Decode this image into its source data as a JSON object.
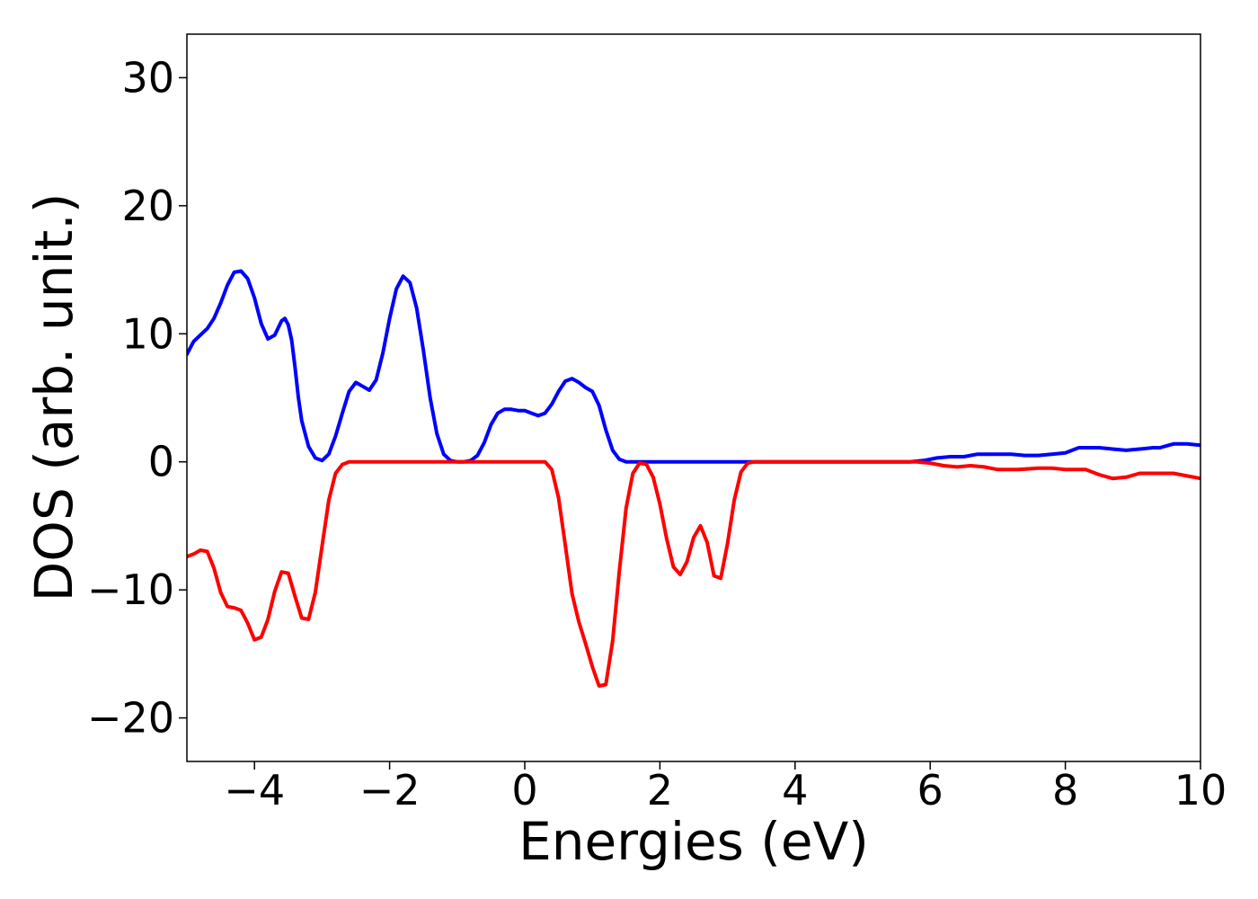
{
  "chart_data": {
    "type": "line",
    "title": "",
    "xlabel": "Energies (eV)",
    "ylabel": "DOS (arb. unit.)",
    "xlim": [
      -5,
      10
    ],
    "ylim": [
      -23.4,
      33.4
    ],
    "xticks": [
      -4,
      -2,
      0,
      2,
      4,
      6,
      8,
      10
    ],
    "xtick_labels": [
      "−4",
      "−2",
      "0",
      "2",
      "4",
      "6",
      "8",
      "10"
    ],
    "yticks": [
      -20,
      -10,
      0,
      10,
      20,
      30
    ],
    "ytick_labels": [
      "−20",
      "−10",
      "0",
      "10",
      "20",
      "30"
    ],
    "grid": false,
    "legend": "none",
    "series": [
      {
        "color": "#0000ff",
        "points": [
          [
            -5.0,
            8.4
          ],
          [
            -4.9,
            9.4
          ],
          [
            -4.8,
            9.9
          ],
          [
            -4.7,
            10.4
          ],
          [
            -4.6,
            11.2
          ],
          [
            -4.5,
            12.4
          ],
          [
            -4.4,
            13.8
          ],
          [
            -4.3,
            14.8
          ],
          [
            -4.2,
            14.9
          ],
          [
            -4.1,
            14.3
          ],
          [
            -4.0,
            12.8
          ],
          [
            -3.9,
            10.8
          ],
          [
            -3.8,
            9.6
          ],
          [
            -3.7,
            9.9
          ],
          [
            -3.6,
            11.0
          ],
          [
            -3.55,
            11.2
          ],
          [
            -3.5,
            10.7
          ],
          [
            -3.45,
            9.5
          ],
          [
            -3.4,
            7.4
          ],
          [
            -3.35,
            5.0
          ],
          [
            -3.3,
            3.2
          ],
          [
            -3.2,
            1.2
          ],
          [
            -3.1,
            0.3
          ],
          [
            -3.0,
            0.1
          ],
          [
            -2.9,
            0.6
          ],
          [
            -2.8,
            2.0
          ],
          [
            -2.7,
            3.8
          ],
          [
            -2.6,
            5.5
          ],
          [
            -2.5,
            6.2
          ],
          [
            -2.4,
            5.9
          ],
          [
            -2.3,
            5.6
          ],
          [
            -2.2,
            6.4
          ],
          [
            -2.1,
            8.5
          ],
          [
            -2.0,
            11.2
          ],
          [
            -1.9,
            13.5
          ],
          [
            -1.8,
            14.5
          ],
          [
            -1.7,
            14.0
          ],
          [
            -1.6,
            12.0
          ],
          [
            -1.5,
            8.7
          ],
          [
            -1.4,
            5.0
          ],
          [
            -1.3,
            2.2
          ],
          [
            -1.2,
            0.6
          ],
          [
            -1.1,
            0.1
          ],
          [
            -1.0,
            0.0
          ],
          [
            -0.9,
            0.0
          ],
          [
            -0.8,
            0.1
          ],
          [
            -0.7,
            0.5
          ],
          [
            -0.6,
            1.5
          ],
          [
            -0.5,
            2.9
          ],
          [
            -0.4,
            3.8
          ],
          [
            -0.3,
            4.1
          ],
          [
            -0.2,
            4.1
          ],
          [
            -0.1,
            4.0
          ],
          [
            0.0,
            4.0
          ],
          [
            0.1,
            3.8
          ],
          [
            0.2,
            3.6
          ],
          [
            0.3,
            3.8
          ],
          [
            0.4,
            4.5
          ],
          [
            0.5,
            5.5
          ],
          [
            0.6,
            6.3
          ],
          [
            0.7,
            6.5
          ],
          [
            0.8,
            6.2
          ],
          [
            0.9,
            5.8
          ],
          [
            1.0,
            5.5
          ],
          [
            1.1,
            4.4
          ],
          [
            1.2,
            2.5
          ],
          [
            1.3,
            0.9
          ],
          [
            1.4,
            0.2
          ],
          [
            1.5,
            0.0
          ],
          [
            2.0,
            0.0
          ],
          [
            3.0,
            0.0
          ],
          [
            4.0,
            0.0
          ],
          [
            5.0,
            0.0
          ],
          [
            5.7,
            0.0
          ],
          [
            5.9,
            0.1
          ],
          [
            6.1,
            0.3
          ],
          [
            6.3,
            0.4
          ],
          [
            6.5,
            0.4
          ],
          [
            6.7,
            0.6
          ],
          [
            7.0,
            0.6
          ],
          [
            7.2,
            0.6
          ],
          [
            7.4,
            0.5
          ],
          [
            7.6,
            0.5
          ],
          [
            7.8,
            0.6
          ],
          [
            8.0,
            0.7
          ],
          [
            8.2,
            1.1
          ],
          [
            8.5,
            1.1
          ],
          [
            8.7,
            1.0
          ],
          [
            8.9,
            0.9
          ],
          [
            9.1,
            1.0
          ],
          [
            9.3,
            1.1
          ],
          [
            9.4,
            1.1
          ],
          [
            9.6,
            1.4
          ],
          [
            9.8,
            1.4
          ],
          [
            10.0,
            1.3
          ]
        ]
      },
      {
        "color": "#ff0000",
        "points": [
          [
            -5.0,
            -7.4
          ],
          [
            -4.9,
            -7.2
          ],
          [
            -4.8,
            -6.9
          ],
          [
            -4.7,
            -7.0
          ],
          [
            -4.6,
            -8.3
          ],
          [
            -4.5,
            -10.2
          ],
          [
            -4.4,
            -11.3
          ],
          [
            -4.3,
            -11.4
          ],
          [
            -4.2,
            -11.6
          ],
          [
            -4.1,
            -12.6
          ],
          [
            -4.0,
            -13.9
          ],
          [
            -3.9,
            -13.7
          ],
          [
            -3.8,
            -12.3
          ],
          [
            -3.7,
            -10.1
          ],
          [
            -3.6,
            -8.6
          ],
          [
            -3.5,
            -8.7
          ],
          [
            -3.4,
            -10.5
          ],
          [
            -3.3,
            -12.2
          ],
          [
            -3.2,
            -12.3
          ],
          [
            -3.1,
            -10.2
          ],
          [
            -3.0,
            -6.6
          ],
          [
            -2.9,
            -3.0
          ],
          [
            -2.8,
            -0.9
          ],
          [
            -2.7,
            -0.2
          ],
          [
            -2.6,
            0.0
          ],
          [
            -2.0,
            0.0
          ],
          [
            -1.0,
            0.0
          ],
          [
            0.0,
            0.0
          ],
          [
            0.3,
            0.0
          ],
          [
            0.4,
            -0.6
          ],
          [
            0.5,
            -2.8
          ],
          [
            0.6,
            -6.5
          ],
          [
            0.7,
            -10.3
          ],
          [
            0.8,
            -12.5
          ],
          [
            0.9,
            -14.2
          ],
          [
            1.0,
            -16.0
          ],
          [
            1.1,
            -17.5
          ],
          [
            1.2,
            -17.4
          ],
          [
            1.3,
            -14.0
          ],
          [
            1.4,
            -8.5
          ],
          [
            1.5,
            -3.6
          ],
          [
            1.6,
            -0.9
          ],
          [
            1.7,
            -0.1
          ],
          [
            1.8,
            -0.2
          ],
          [
            1.9,
            -1.2
          ],
          [
            2.0,
            -3.3
          ],
          [
            2.1,
            -6.0
          ],
          [
            2.2,
            -8.2
          ],
          [
            2.3,
            -8.8
          ],
          [
            2.4,
            -7.8
          ],
          [
            2.5,
            -5.9
          ],
          [
            2.6,
            -5.0
          ],
          [
            2.7,
            -6.3
          ],
          [
            2.8,
            -8.9
          ],
          [
            2.9,
            -9.1
          ],
          [
            3.0,
            -6.4
          ],
          [
            3.1,
            -3.0
          ],
          [
            3.2,
            -0.8
          ],
          [
            3.3,
            -0.1
          ],
          [
            3.4,
            0.0
          ],
          [
            4.0,
            0.0
          ],
          [
            5.0,
            0.0
          ],
          [
            5.8,
            0.0
          ],
          [
            6.0,
            -0.1
          ],
          [
            6.2,
            -0.3
          ],
          [
            6.4,
            -0.4
          ],
          [
            6.6,
            -0.3
          ],
          [
            6.8,
            -0.4
          ],
          [
            7.0,
            -0.6
          ],
          [
            7.3,
            -0.6
          ],
          [
            7.6,
            -0.5
          ],
          [
            7.8,
            -0.5
          ],
          [
            8.0,
            -0.6
          ],
          [
            8.3,
            -0.6
          ],
          [
            8.5,
            -1.0
          ],
          [
            8.7,
            -1.3
          ],
          [
            8.9,
            -1.2
          ],
          [
            9.1,
            -0.9
          ],
          [
            9.3,
            -0.9
          ],
          [
            9.6,
            -0.9
          ],
          [
            9.8,
            -1.1
          ],
          [
            10.0,
            -1.3
          ]
        ]
      }
    ]
  }
}
